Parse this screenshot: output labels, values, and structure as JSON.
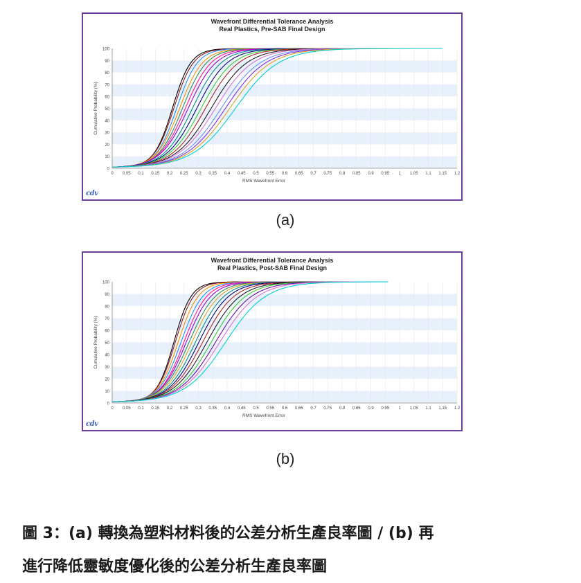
{
  "chart_data": [
    {
      "type": "line",
      "title": "Wavefront Differential Tolerance Analysis",
      "subtitle": "Real Plastics, Pre-SAB Final Design",
      "xlabel": "RMS Wavefront Error",
      "ylabel": "Cumulative Probability (%)",
      "xlim": [
        0,
        1.2
      ],
      "ylim": [
        0,
        100
      ],
      "x_ticks": [
        "0",
        "0.05",
        "0.1",
        "0.15",
        "0.2",
        "0.25",
        "0.3",
        "0.35",
        "0.4",
        "0.45",
        "0.5",
        "0.55",
        "0.6",
        "0.65",
        "0.7",
        "0.75",
        "0.8",
        "0.85",
        "0.9",
        "0.95",
        "1",
        "1.05",
        "1.1",
        "1.15",
        "1.2"
      ],
      "y_ticks": [
        "0",
        "10",
        "20",
        "30",
        "40",
        "50",
        "60",
        "70",
        "80",
        "90",
        "100"
      ],
      "grid": "horizontal alternating bands",
      "series": [
        {
          "color": "#000000",
          "median": 0.21,
          "spread": 0.032,
          "end": 0.78
        },
        {
          "color": "#8b1a1a",
          "median": 0.215,
          "spread": 0.034,
          "end": 0.8
        },
        {
          "color": "#1e90ff",
          "median": 0.225,
          "spread": 0.036,
          "end": 0.82
        },
        {
          "color": "#ff8c00",
          "median": 0.235,
          "spread": 0.04,
          "end": 0.84
        },
        {
          "color": "#2e8b57",
          "median": 0.245,
          "spread": 0.042,
          "end": 0.86
        },
        {
          "color": "#ff1493",
          "median": 0.255,
          "spread": 0.045,
          "end": 0.88
        },
        {
          "color": "#9400d3",
          "median": 0.265,
          "spread": 0.048,
          "end": 0.9
        },
        {
          "color": "#008b8b",
          "median": 0.28,
          "spread": 0.05,
          "end": 0.92
        },
        {
          "color": "#000080",
          "median": 0.295,
          "spread": 0.053,
          "end": 0.94
        },
        {
          "color": "#32cd32",
          "median": 0.31,
          "spread": 0.056,
          "end": 0.96
        },
        {
          "color": "#b22222",
          "median": 0.325,
          "spread": 0.058,
          "end": 0.98
        },
        {
          "color": "#1a1a1a",
          "median": 0.345,
          "spread": 0.062,
          "end": 1.0
        },
        {
          "color": "#da70d6",
          "median": 0.36,
          "spread": 0.065,
          "end": 1.02
        },
        {
          "color": "#6495ed",
          "median": 0.38,
          "spread": 0.068,
          "end": 1.05
        },
        {
          "color": "#8a2be2",
          "median": 0.395,
          "spread": 0.07,
          "end": 1.08
        },
        {
          "color": "#daa520",
          "median": 0.41,
          "spread": 0.072,
          "end": 1.11
        },
        {
          "color": "#00ced1",
          "median": 0.43,
          "spread": 0.075,
          "end": 1.15
        }
      ]
    },
    {
      "type": "line",
      "title": "Wavefront Differential Tolerance Analysis",
      "subtitle": "Real Plastics, Post-SAB Final Design",
      "xlabel": "RMS Wavefront Error",
      "ylabel": "Cumulative Probability (%)",
      "xlim": [
        0,
        1.2
      ],
      "ylim": [
        0,
        100
      ],
      "x_ticks": [
        "0",
        "0.05",
        "0.1",
        "0.15",
        "0.2",
        "0.25",
        "0.3",
        "0.35",
        "0.4",
        "0.45",
        "0.5",
        "0.55",
        "0.6",
        "0.65",
        "0.7",
        "0.75",
        "0.8",
        "0.85",
        "0.9",
        "0.95",
        "1",
        "1.05",
        "1.1",
        "1.15",
        "1.2"
      ],
      "y_ticks": [
        "0",
        "10",
        "20",
        "30",
        "40",
        "50",
        "60",
        "70",
        "80",
        "90",
        "100"
      ],
      "grid": "horizontal alternating bands",
      "series": [
        {
          "color": "#000000",
          "median": 0.215,
          "spread": 0.03,
          "end": 0.7
        },
        {
          "color": "#8b1a1a",
          "median": 0.22,
          "spread": 0.032,
          "end": 0.72
        },
        {
          "color": "#ff8c00",
          "median": 0.23,
          "spread": 0.035,
          "end": 0.74
        },
        {
          "color": "#1e90ff",
          "median": 0.24,
          "spread": 0.038,
          "end": 0.76
        },
        {
          "color": "#ff1493",
          "median": 0.25,
          "spread": 0.04,
          "end": 0.78
        },
        {
          "color": "#9400d3",
          "median": 0.258,
          "spread": 0.043,
          "end": 0.8
        },
        {
          "color": "#2e8b57",
          "median": 0.268,
          "spread": 0.046,
          "end": 0.82
        },
        {
          "color": "#daa520",
          "median": 0.278,
          "spread": 0.048,
          "end": 0.84
        },
        {
          "color": "#008b8b",
          "median": 0.29,
          "spread": 0.05,
          "end": 0.86
        },
        {
          "color": "#000080",
          "median": 0.302,
          "spread": 0.052,
          "end": 0.88
        },
        {
          "color": "#b22222",
          "median": 0.315,
          "spread": 0.055,
          "end": 0.89
        },
        {
          "color": "#1a1a1a",
          "median": 0.33,
          "spread": 0.058,
          "end": 0.9
        },
        {
          "color": "#32cd32",
          "median": 0.345,
          "spread": 0.06,
          "end": 0.91
        },
        {
          "color": "#6a0dad",
          "median": 0.36,
          "spread": 0.063,
          "end": 0.92
        },
        {
          "color": "#da70d6",
          "median": 0.375,
          "spread": 0.066,
          "end": 0.93
        },
        {
          "color": "#00ced1",
          "median": 0.395,
          "spread": 0.07,
          "end": 0.96
        }
      ]
    }
  ],
  "panel_a": {
    "label": "(a)",
    "logo": "cdv"
  },
  "panel_b": {
    "label": "(b)",
    "logo": "cdv"
  },
  "caption": {
    "line1": "圖 3：(a) 轉換為塑料材料後的公差分析生產良率圖 / (b) 再",
    "line2": "進行降低靈敏度優化後的公差分析生產良率圖"
  },
  "colors": {
    "border": "#6b3fa0",
    "band": "#e8f1fb",
    "logo": "#3e63b8"
  }
}
